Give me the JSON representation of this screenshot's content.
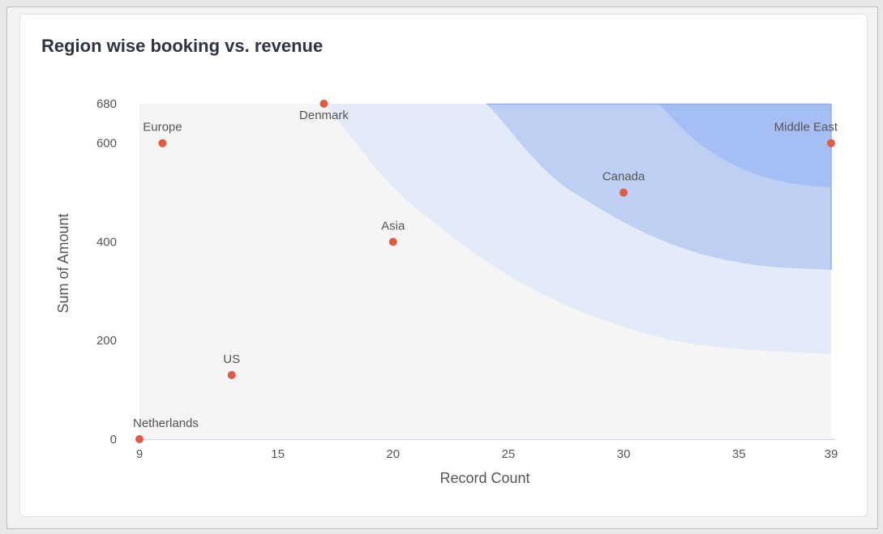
{
  "chart_data": {
    "type": "scatter",
    "title": "Region wise booking vs. revenue",
    "xlabel": "Record Count",
    "ylabel": "Sum of Amount",
    "xlim": [
      9,
      39
    ],
    "ylim": [
      0,
      680
    ],
    "xticks": [
      9,
      15,
      20,
      25,
      30,
      35,
      39
    ],
    "yticks": [
      0,
      200,
      400,
      600,
      680
    ],
    "grid": false,
    "points": [
      {
        "label": "Europe",
        "x": 10,
        "y": 600
      },
      {
        "label": "Denmark",
        "x": 17,
        "y": 680
      },
      {
        "label": "Asia",
        "x": 20,
        "y": 400
      },
      {
        "label": "US",
        "x": 13,
        "y": 130
      },
      {
        "label": "Netherlands",
        "x": 9,
        "y": 0
      },
      {
        "label": "Canada",
        "x": 30,
        "y": 500
      },
      {
        "label": "Middle East",
        "x": 39,
        "y": 600
      }
    ],
    "colors": {
      "point": "#e05a44",
      "band1": "#e3eaf8",
      "band2": "#bdcff3",
      "band3": "#a5bff5",
      "plot_bg": "#f5f5f5"
    }
  }
}
